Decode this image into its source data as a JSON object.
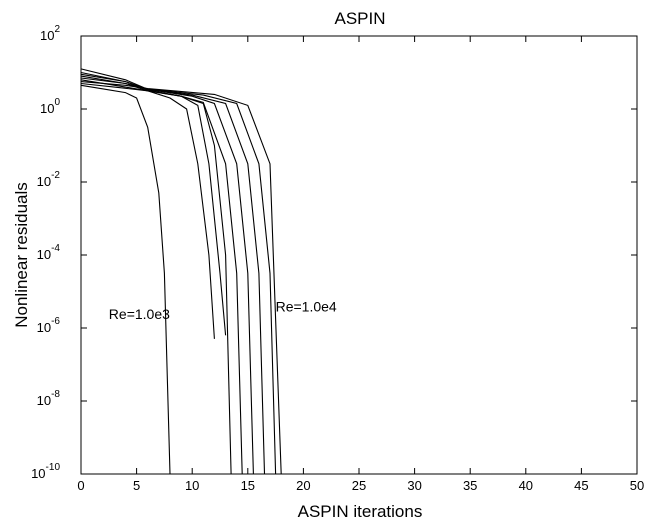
{
  "chart_data": {
    "type": "line",
    "title": "ASPIN",
    "xlabel": "ASPIN iterations",
    "ylabel": "Nonlinear residuals",
    "xlim": [
      0,
      50
    ],
    "ylim_exp": [
      -10,
      2
    ],
    "yscale": "log",
    "grid": false,
    "x_ticks": [
      "0",
      "5",
      "10",
      "15",
      "20",
      "25",
      "30",
      "35",
      "40",
      "45",
      "50"
    ],
    "y_ticks": [
      {
        "base": "10",
        "exp": "2"
      },
      {
        "base": "10",
        "exp": "0"
      },
      {
        "base": "10",
        "exp": "-2"
      },
      {
        "base": "10",
        "exp": "-4"
      },
      {
        "base": "10",
        "exp": "-6"
      },
      {
        "base": "10",
        "exp": "-8"
      },
      {
        "base": "10",
        "exp": "-10"
      }
    ],
    "annotations": [
      {
        "text": "Re=1.0e3",
        "x": 2.5,
        "y_exp": -5.75
      },
      {
        "text": "Re=1.0e4",
        "x": 17.5,
        "y_exp": -5.55
      }
    ],
    "series": [
      {
        "points": [
          [
            0,
            0.65
          ],
          [
            2,
            0.55
          ],
          [
            4,
            0.45
          ],
          [
            5,
            0.3
          ],
          [
            6,
            -0.5
          ],
          [
            7,
            -2.3
          ],
          [
            7.5,
            -4.5
          ],
          [
            8,
            -10
          ]
        ]
      },
      {
        "points": [
          [
            0,
            0.7
          ],
          [
            3,
            0.6
          ],
          [
            6,
            0.5
          ],
          [
            8,
            0.3
          ],
          [
            9.5,
            0
          ],
          [
            10.5,
            -1.5
          ],
          [
            11.5,
            -4
          ],
          [
            12,
            -6.3
          ]
        ]
      },
      {
        "points": [
          [
            0,
            0.8
          ],
          [
            4,
            0.6
          ],
          [
            6,
            0.5
          ],
          [
            9,
            0.35
          ],
          [
            10.5,
            0.1
          ],
          [
            11.5,
            -1.5
          ],
          [
            12.5,
            -4.5
          ],
          [
            13,
            -6.2
          ]
        ]
      },
      {
        "points": [
          [
            0,
            0.9
          ],
          [
            4,
            0.7
          ],
          [
            6,
            0.5
          ],
          [
            9,
            0.35
          ],
          [
            11,
            0.15
          ],
          [
            12,
            -1
          ],
          [
            13,
            -4
          ],
          [
            13.5,
            -10
          ]
        ]
      },
      {
        "points": [
          [
            0,
            1.0
          ],
          [
            4,
            0.75
          ],
          [
            6,
            0.52
          ],
          [
            9,
            0.35
          ],
          [
            11,
            0.18
          ],
          [
            13,
            -1.5
          ],
          [
            14,
            -4.5
          ],
          [
            14.5,
            -10
          ]
        ]
      },
      {
        "points": [
          [
            0,
            1.1
          ],
          [
            4,
            0.8
          ],
          [
            6,
            0.54
          ],
          [
            10,
            0.35
          ],
          [
            12,
            0.15
          ],
          [
            14,
            -1.5
          ],
          [
            15,
            -4.5
          ],
          [
            15.5,
            -10
          ]
        ]
      },
      {
        "points": [
          [
            0,
            0.95
          ],
          [
            4,
            0.75
          ],
          [
            6,
            0.54
          ],
          [
            10,
            0.38
          ],
          [
            13,
            0.15
          ],
          [
            15,
            -1.5
          ],
          [
            16,
            -4.5
          ],
          [
            16.5,
            -10
          ]
        ]
      },
      {
        "points": [
          [
            0,
            0.85
          ],
          [
            4,
            0.7
          ],
          [
            6,
            0.55
          ],
          [
            11,
            0.38
          ],
          [
            14,
            0.15
          ],
          [
            16,
            -1.5
          ],
          [
            17,
            -4.5
          ],
          [
            17.5,
            -10
          ]
        ]
      },
      {
        "points": [
          [
            0,
            0.75
          ],
          [
            4,
            0.65
          ],
          [
            6,
            0.56
          ],
          [
            12,
            0.4
          ],
          [
            15,
            0.1
          ],
          [
            17,
            -1.5
          ],
          [
            18,
            -10
          ]
        ]
      }
    ]
  }
}
